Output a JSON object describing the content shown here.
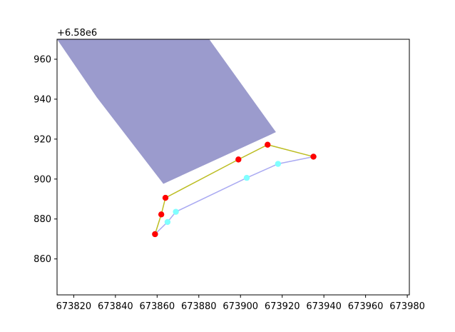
{
  "chart_data": {
    "type": "scatter",
    "title": "",
    "xlabel": "",
    "ylabel": "",
    "y_offset_text": "+6.58e6",
    "y_offset_value": 6580000,
    "xlim": [
      673812,
      673981
    ],
    "ylim": [
      842,
      970
    ],
    "x_ticks": [
      673820,
      673840,
      673860,
      673880,
      673900,
      673920,
      673940,
      673960,
      673980
    ],
    "x_tick_labels": [
      "673820",
      "673840",
      "673860",
      "673880",
      "673900",
      "673920",
      "673940",
      "673960",
      "673980"
    ],
    "y_ticks": [
      860,
      880,
      900,
      920,
      940,
      960
    ],
    "y_tick_labels": [
      "860",
      "880",
      "900",
      "920",
      "940",
      "960"
    ],
    "grid": false,
    "legend": "none",
    "polygon": {
      "color": "#9b9bcd",
      "points": [
        [
          673812,
          970
        ],
        [
          673831,
          941
        ],
        [
          673863,
          897.6
        ],
        [
          673917,
          923.5
        ],
        [
          673885,
          970
        ]
      ]
    },
    "series": [
      {
        "color": "#bcbd22",
        "marker_color": "#ff0000",
        "points": [
          [
            673859,
            872.4
          ],
          [
            673862,
            882.3
          ],
          [
            673864,
            890.6
          ],
          [
            673899,
            909.8
          ],
          [
            673913,
            917.2
          ],
          [
            673935,
            911.2
          ]
        ]
      },
      {
        "color": "#aaaaf2",
        "marker_color": "#80ffff",
        "points": [
          [
            673859,
            872.4
          ],
          [
            673865,
            878.5
          ],
          [
            673869,
            883.6
          ],
          [
            673903,
            900.6
          ],
          [
            673918,
            907.6
          ],
          [
            673935,
            911.2
          ]
        ]
      }
    ]
  }
}
